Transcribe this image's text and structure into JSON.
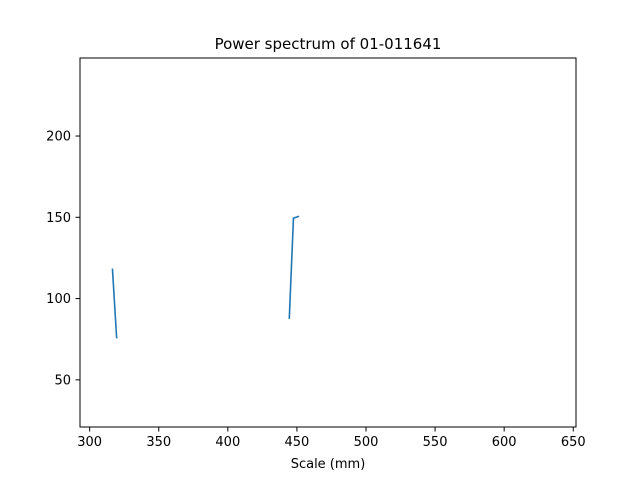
{
  "chart_data": {
    "type": "line",
    "title": "Power spectrum of 01-011641",
    "xlabel": "Scale (mm)",
    "ylabel": "",
    "xlim": [
      293,
      652
    ],
    "ylim": [
      21,
      248
    ],
    "xticks": [
      300,
      350,
      400,
      450,
      500,
      550,
      600,
      650
    ],
    "yticks": [
      50,
      100,
      150,
      200
    ],
    "grid": false,
    "series": [
      {
        "color": "#1f77b4",
        "segments": [
          [
            [
              316.5,
              118
            ],
            [
              319.5,
              76
            ]
          ],
          [
            [
              444.5,
              88
            ],
            [
              447.5,
              149.5
            ],
            [
              451,
              150.5
            ]
          ]
        ]
      }
    ]
  }
}
